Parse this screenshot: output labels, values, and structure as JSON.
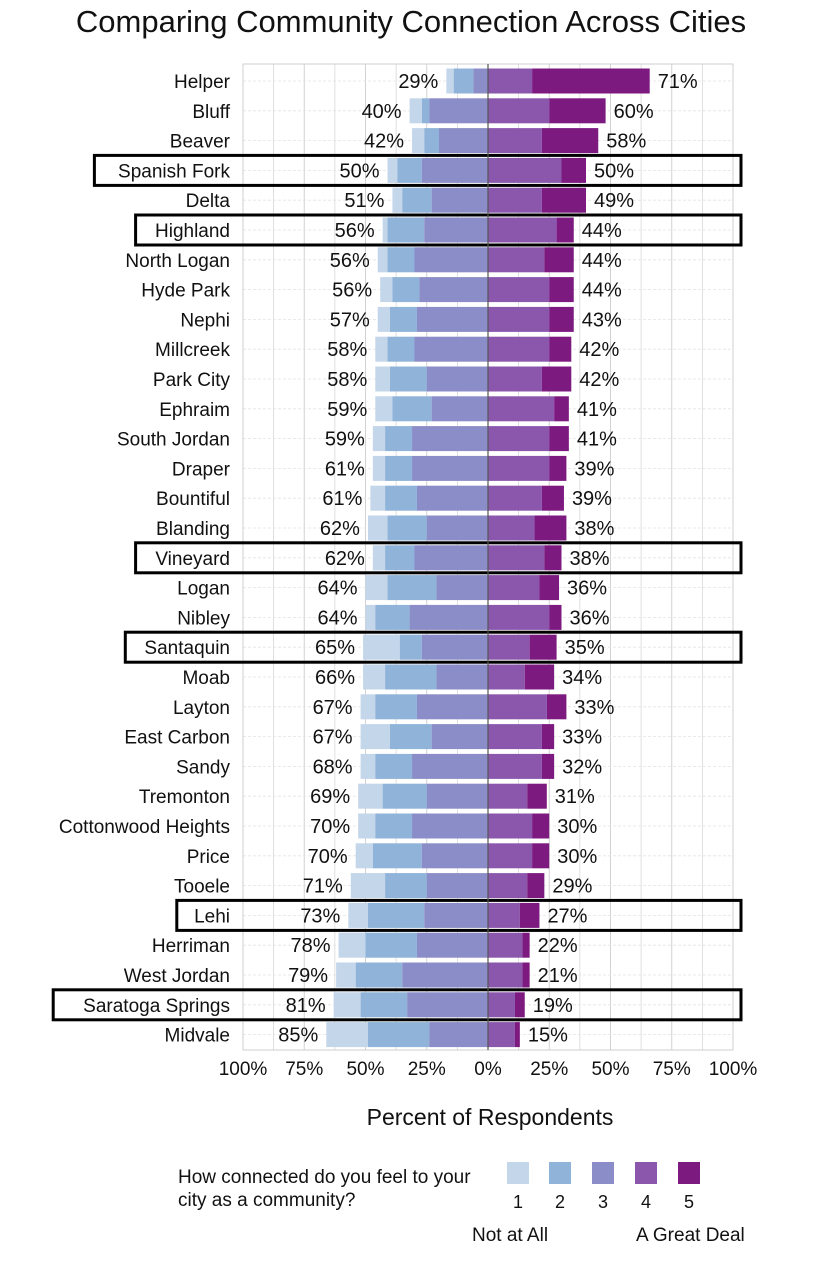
{
  "chart_data": {
    "type": "bar",
    "orientation": "horizontal",
    "stacked": true,
    "diverging": true,
    "title": "Comparing Community Connection Across Cities",
    "xlabel": "Percent of Respondents",
    "x_ticks": [
      "100%",
      "75%",
      "50%",
      "25%",
      "0%",
      "25%",
      "50%",
      "75%",
      "100%"
    ],
    "xlim": [
      -100,
      100
    ],
    "grid": true,
    "legend": {
      "title": "How connected do you feel to your city as a community?",
      "placement": "bottom",
      "levels": [
        "1",
        "2",
        "3",
        "4",
        "5"
      ],
      "low_label": "Not at All",
      "high_label": "A Great Deal"
    },
    "series": [
      {
        "name": "1",
        "color": "#c4d6ea"
      },
      {
        "name": "2",
        "color": "#90b3d9"
      },
      {
        "name": "3",
        "color": "#8a8dc7"
      },
      {
        "name": "4",
        "color": "#8a57ad"
      },
      {
        "name": "5",
        "color": "#7c1a80"
      }
    ],
    "rows": [
      {
        "city": "Helper",
        "left_label": "29%",
        "right_label": "71%",
        "values": [
          3,
          8,
          6,
          18,
          48
        ],
        "highlighted": false
      },
      {
        "city": "Bluff",
        "left_label": "40%",
        "right_label": "60%",
        "values": [
          5,
          3,
          24,
          25,
          23
        ],
        "highlighted": false
      },
      {
        "city": "Beaver",
        "left_label": "42%",
        "right_label": "58%",
        "values": [
          5,
          6,
          20,
          22,
          23
        ],
        "highlighted": false
      },
      {
        "city": "Spanish Fork",
        "left_label": "50%",
        "right_label": "50%",
        "values": [
          4,
          10,
          27,
          30,
          10
        ],
        "highlighted": true
      },
      {
        "city": "Delta",
        "left_label": "51%",
        "right_label": "49%",
        "values": [
          4,
          12,
          23,
          22,
          18
        ],
        "highlighted": false
      },
      {
        "city": "Highland",
        "left_label": "56%",
        "right_label": "44%",
        "values": [
          2,
          15,
          26,
          28,
          7
        ],
        "highlighted": true
      },
      {
        "city": "North Logan",
        "left_label": "56%",
        "right_label": "44%",
        "values": [
          4,
          11,
          30,
          23,
          12
        ],
        "highlighted": false
      },
      {
        "city": "Hyde Park",
        "left_label": "56%",
        "right_label": "44%",
        "values": [
          5,
          11,
          28,
          25,
          10
        ],
        "highlighted": false
      },
      {
        "city": "Nephi",
        "left_label": "57%",
        "right_label": "43%",
        "values": [
          5,
          11,
          29,
          25,
          10
        ],
        "highlighted": false
      },
      {
        "city": "Millcreek",
        "left_label": "58%",
        "right_label": "42%",
        "values": [
          5,
          11,
          30,
          25,
          9
        ],
        "highlighted": false
      },
      {
        "city": "Park City",
        "left_label": "58%",
        "right_label": "42%",
        "values": [
          6,
          15,
          25,
          22,
          12
        ],
        "highlighted": false
      },
      {
        "city": "Ephraim",
        "left_label": "59%",
        "right_label": "41%",
        "values": [
          7,
          16,
          23,
          27,
          6
        ],
        "highlighted": false
      },
      {
        "city": "South Jordan",
        "left_label": "59%",
        "right_label": "41%",
        "values": [
          5,
          11,
          31,
          25,
          8
        ],
        "highlighted": false
      },
      {
        "city": "Draper",
        "left_label": "61%",
        "right_label": "39%",
        "values": [
          5,
          11,
          31,
          25,
          7
        ],
        "highlighted": false
      },
      {
        "city": "Bountiful",
        "left_label": "61%",
        "right_label": "39%",
        "values": [
          6,
          13,
          29,
          22,
          9
        ],
        "highlighted": false
      },
      {
        "city": "Blanding",
        "left_label": "62%",
        "right_label": "38%",
        "values": [
          8,
          16,
          25,
          19,
          13
        ],
        "highlighted": false
      },
      {
        "city": "Vineyard",
        "left_label": "62%",
        "right_label": "38%",
        "values": [
          5,
          12,
          30,
          23,
          7
        ],
        "highlighted": true
      },
      {
        "city": "Logan",
        "left_label": "64%",
        "right_label": "36%",
        "values": [
          9,
          20,
          21,
          21,
          8
        ],
        "highlighted": false
      },
      {
        "city": "Nibley",
        "left_label": "64%",
        "right_label": "36%",
        "values": [
          4,
          14,
          32,
          25,
          5
        ],
        "highlighted": false
      },
      {
        "city": "Santaquin",
        "left_label": "65%",
        "right_label": "35%",
        "values": [
          15,
          9,
          27,
          17,
          11
        ],
        "highlighted": true
      },
      {
        "city": "Moab",
        "left_label": "66%",
        "right_label": "34%",
        "values": [
          9,
          21,
          21,
          15,
          12
        ],
        "highlighted": false
      },
      {
        "city": "Layton",
        "left_label": "67%",
        "right_label": "33%",
        "values": [
          6,
          17,
          29,
          24,
          8
        ],
        "highlighted": false
      },
      {
        "city": "East Carbon",
        "left_label": "67%",
        "right_label": "33%",
        "values": [
          12,
          17,
          23,
          22,
          5
        ],
        "highlighted": false
      },
      {
        "city": "Sandy",
        "left_label": "68%",
        "right_label": "32%",
        "values": [
          6,
          15,
          31,
          22,
          5
        ],
        "highlighted": false
      },
      {
        "city": "Tremonton",
        "left_label": "69%",
        "right_label": "31%",
        "values": [
          10,
          18,
          25,
          16,
          8
        ],
        "highlighted": false
      },
      {
        "city": "Cottonwood Heights",
        "left_label": "70%",
        "right_label": "30%",
        "values": [
          7,
          15,
          31,
          18,
          7
        ],
        "highlighted": false
      },
      {
        "city": "Price",
        "left_label": "70%",
        "right_label": "30%",
        "values": [
          7,
          20,
          27,
          18,
          7
        ],
        "highlighted": false
      },
      {
        "city": "Tooele",
        "left_label": "71%",
        "right_label": "29%",
        "values": [
          14,
          17,
          25,
          16,
          7
        ],
        "highlighted": false
      },
      {
        "city": "Lehi",
        "left_label": "73%",
        "right_label": "27%",
        "values": [
          8,
          23,
          26,
          13,
          8
        ],
        "highlighted": true
      },
      {
        "city": "Herriman",
        "left_label": "78%",
        "right_label": "22%",
        "values": [
          11,
          21,
          29,
          14,
          3
        ],
        "highlighted": false
      },
      {
        "city": "West Jordan",
        "left_label": "79%",
        "right_label": "21%",
        "values": [
          8,
          19,
          35,
          14,
          3
        ],
        "highlighted": false
      },
      {
        "city": "Saratoga Springs",
        "left_label": "81%",
        "right_label": "19%",
        "values": [
          11,
          19,
          33,
          11,
          4
        ],
        "highlighted": true
      },
      {
        "city": "Midvale",
        "left_label": "85%",
        "right_label": "15%",
        "values": [
          17,
          25,
          24,
          11,
          2
        ],
        "highlighted": false
      }
    ]
  }
}
